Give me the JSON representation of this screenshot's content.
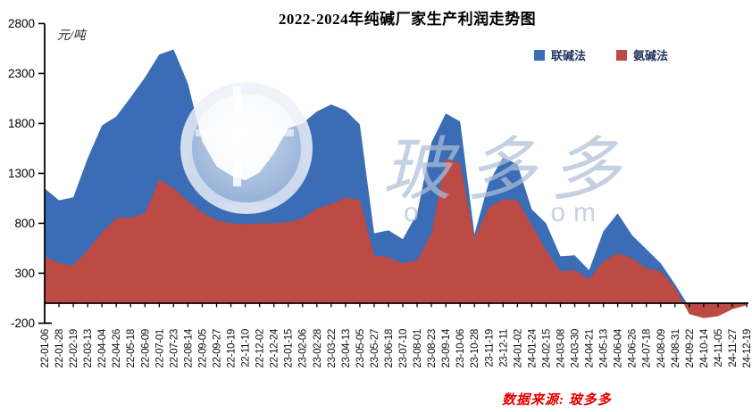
{
  "title": "2022-2024年纯碱厂家生产利润走势图",
  "y_axis": {
    "unit": "元/吨",
    "min": -200,
    "max": 2800,
    "step": 500
  },
  "legend": [
    {
      "name": "联碱法",
      "color": "#3a6db6"
    },
    {
      "name": "氨碱法",
      "color": "#bc4a45"
    }
  ],
  "watermark": {
    "text": "玻多多",
    "subtext": "o        om"
  },
  "source_note": "数据来源: 玻多多",
  "chart_data": {
    "type": "area",
    "title": "2022-2024年纯碱厂家生产利润走势图",
    "ylabel": "元/吨",
    "xlabel": "",
    "ylim": [
      -200,
      2800
    ],
    "ytick_step": 500,
    "grid": false,
    "legend_position": "top-right",
    "x": [
      "22-01-06",
      "22-01-28",
      "22-02-19",
      "22-03-13",
      "22-04-04",
      "22-04-26",
      "22-05-18",
      "22-06-09",
      "22-07-01",
      "22-07-23",
      "22-08-14",
      "22-09-05",
      "22-09-27",
      "22-10-19",
      "22-11-10",
      "22-12-02",
      "22-12-24",
      "23-01-15",
      "23-02-06",
      "23-02-28",
      "23-03-22",
      "23-04-13",
      "23-05-05",
      "23-05-27",
      "23-06-18",
      "23-07-10",
      "23-08-01",
      "23-08-23",
      "23-09-14",
      "23-10-06",
      "23-10-28",
      "23-11-19",
      "23-12-11",
      "24-01-02",
      "24-01-24",
      "24-02-15",
      "24-03-08",
      "24-03-30",
      "24-04-21",
      "24-05-13",
      "24-06-04",
      "24-06-26",
      "24-07-18",
      "24-08-09",
      "24-08-31",
      "24-09-22",
      "24-10-14",
      "24-11-05",
      "24-11-27",
      "24-12-19"
    ],
    "series": [
      {
        "name": "联碱法",
        "color": "#3a6db6",
        "values": [
          1150,
          1030,
          1060,
          1450,
          1780,
          1870,
          2060,
          2260,
          2490,
          2540,
          2200,
          1620,
          1370,
          1280,
          1230,
          1310,
          1500,
          1750,
          1800,
          1920,
          1990,
          1930,
          1790,
          700,
          730,
          640,
          900,
          1610,
          1900,
          1820,
          690,
          1210,
          1460,
          1390,
          940,
          800,
          470,
          480,
          330,
          720,
          900,
          680,
          540,
          400,
          190,
          -40,
          -60,
          -50,
          -30,
          -10
        ]
      },
      {
        "name": "氨碱法",
        "color": "#bc4a45",
        "values": [
          470,
          400,
          380,
          530,
          710,
          850,
          860,
          900,
          1240,
          1150,
          1020,
          910,
          830,
          800,
          790,
          800,
          800,
          810,
          850,
          950,
          990,
          1060,
          1030,
          480,
          460,
          400,
          430,
          700,
          1450,
          1400,
          650,
          960,
          1040,
          1030,
          780,
          530,
          320,
          330,
          240,
          420,
          500,
          450,
          350,
          320,
          160,
          -110,
          -150,
          -130,
          -60,
          -20
        ]
      }
    ]
  }
}
